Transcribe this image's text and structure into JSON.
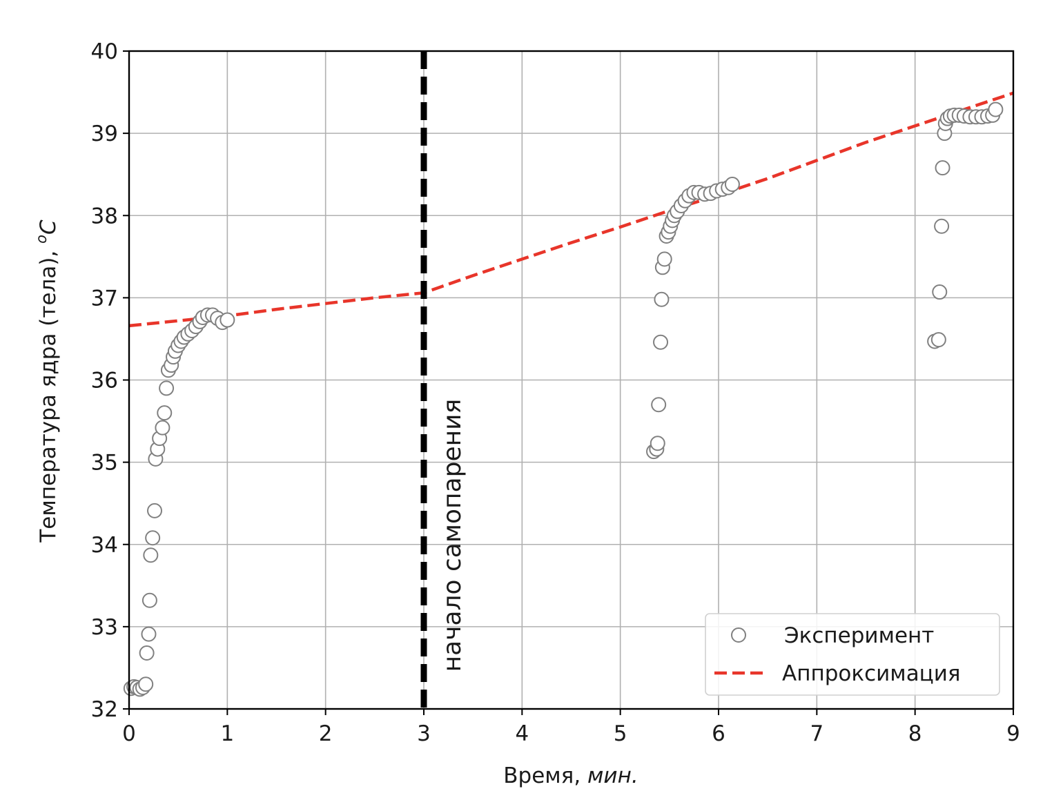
{
  "chart_data": {
    "type": "scatter",
    "title": "",
    "xlabel_main": "Время, ",
    "xlabel_unit": "мин.",
    "ylabel_main": "Температура ядра (тела), ",
    "ylabel_unit_sup": "o",
    "ylabel_unit": "C",
    "xlim": [
      0,
      9
    ],
    "ylim": [
      32,
      40
    ],
    "xticks": [
      "0",
      "1",
      "2",
      "3",
      "4",
      "5",
      "6",
      "7",
      "8",
      "9"
    ],
    "yticks": [
      "32",
      "33",
      "34",
      "35",
      "36",
      "37",
      "38",
      "39",
      "40"
    ],
    "grid": true,
    "legend_position": "lower-right",
    "vline": {
      "x": 3,
      "label": "начало самопарения",
      "color": "#000000"
    },
    "series": [
      {
        "name": "Эксперимент",
        "kind": "scatter",
        "color": "#808080",
        "points": [
          [
            0.02,
            32.25
          ],
          [
            0.05,
            32.27
          ],
          [
            0.08,
            32.26
          ],
          [
            0.11,
            32.24
          ],
          [
            0.14,
            32.26
          ],
          [
            0.17,
            32.3
          ],
          [
            0.18,
            32.68
          ],
          [
            0.2,
            32.91
          ],
          [
            0.21,
            33.32
          ],
          [
            0.22,
            33.87
          ],
          [
            0.24,
            34.08
          ],
          [
            0.26,
            34.41
          ],
          [
            0.27,
            35.04
          ],
          [
            0.29,
            35.16
          ],
          [
            0.31,
            35.29
          ],
          [
            0.34,
            35.42
          ],
          [
            0.36,
            35.6
          ],
          [
            0.38,
            35.9
          ],
          [
            0.4,
            36.12
          ],
          [
            0.43,
            36.18
          ],
          [
            0.45,
            36.28
          ],
          [
            0.47,
            36.35
          ],
          [
            0.5,
            36.42
          ],
          [
            0.53,
            36.47
          ],
          [
            0.56,
            36.52
          ],
          [
            0.6,
            36.56
          ],
          [
            0.64,
            36.6
          ],
          [
            0.68,
            36.65
          ],
          [
            0.72,
            36.71
          ],
          [
            0.75,
            36.76
          ],
          [
            0.8,
            36.79
          ],
          [
            0.85,
            36.79
          ],
          [
            0.9,
            36.75
          ],
          [
            0.95,
            36.7
          ],
          [
            1.0,
            36.73
          ],
          [
            5.34,
            35.13
          ],
          [
            5.37,
            35.16
          ],
          [
            5.38,
            35.23
          ],
          [
            5.39,
            35.7
          ],
          [
            5.41,
            36.46
          ],
          [
            5.42,
            36.98
          ],
          [
            5.43,
            37.37
          ],
          [
            5.45,
            37.47
          ],
          [
            5.47,
            37.75
          ],
          [
            5.49,
            37.8
          ],
          [
            5.51,
            37.87
          ],
          [
            5.53,
            37.94
          ],
          [
            5.55,
            38.0
          ],
          [
            5.58,
            38.05
          ],
          [
            5.62,
            38.12
          ],
          [
            5.66,
            38.18
          ],
          [
            5.7,
            38.24
          ],
          [
            5.75,
            38.28
          ],
          [
            5.8,
            38.28
          ],
          [
            5.86,
            38.26
          ],
          [
            5.92,
            38.27
          ],
          [
            5.98,
            38.3
          ],
          [
            6.04,
            38.32
          ],
          [
            6.1,
            38.34
          ],
          [
            6.14,
            38.38
          ],
          [
            8.2,
            36.47
          ],
          [
            8.24,
            36.49
          ],
          [
            8.25,
            37.07
          ],
          [
            8.27,
            37.87
          ],
          [
            8.28,
            38.58
          ],
          [
            8.3,
            39.0
          ],
          [
            8.31,
            39.12
          ],
          [
            8.33,
            39.18
          ],
          [
            8.36,
            39.21
          ],
          [
            8.4,
            39.22
          ],
          [
            8.45,
            39.22
          ],
          [
            8.5,
            39.21
          ],
          [
            8.56,
            39.2
          ],
          [
            8.62,
            39.2
          ],
          [
            8.68,
            39.2
          ],
          [
            8.74,
            39.21
          ],
          [
            8.79,
            39.22
          ],
          [
            8.82,
            39.29
          ]
        ]
      },
      {
        "name": "Аппроксимация",
        "kind": "line",
        "dashed": true,
        "color": "#e8352a",
        "points": [
          [
            0,
            36.66
          ],
          [
            0.5,
            36.72
          ],
          [
            1.0,
            36.78
          ],
          [
            1.5,
            36.86
          ],
          [
            2.0,
            36.93
          ],
          [
            2.5,
            37.0
          ],
          [
            3.0,
            37.06
          ],
          [
            3.5,
            37.27
          ],
          [
            4.0,
            37.47
          ],
          [
            4.5,
            37.67
          ],
          [
            5.0,
            37.86
          ],
          [
            5.5,
            38.06
          ],
          [
            6.0,
            38.25
          ],
          [
            6.5,
            38.45
          ],
          [
            7.0,
            38.67
          ],
          [
            7.5,
            38.89
          ],
          [
            8.0,
            39.09
          ],
          [
            8.5,
            39.29
          ],
          [
            9.0,
            39.49
          ]
        ]
      }
    ]
  }
}
